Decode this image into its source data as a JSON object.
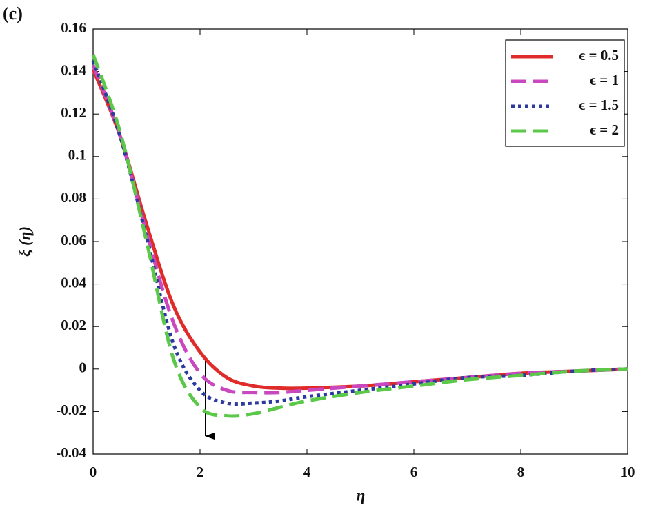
{
  "chart_data": {
    "type": "line",
    "panel_label": "(c)",
    "x_label": "η",
    "y_label": "ξ (η)",
    "x": [
      0,
      0.5,
      1,
      1.5,
      2,
      2.5,
      3,
      3.5,
      4,
      5,
      6,
      7,
      8,
      9,
      10
    ],
    "series": [
      {
        "name": "ϵ = 0.5",
        "color": "#e02b2b",
        "linestyle": "solid",
        "values": [
          0.141,
          0.11,
          0.068,
          0.03,
          0.008,
          -0.004,
          -0.008,
          -0.009,
          -0.009,
          -0.008,
          -0.006,
          -0.004,
          -0.002,
          -0.001,
          0
        ]
      },
      {
        "name": "ϵ = 1",
        "color": "#c948c0",
        "linestyle": "dashed",
        "values": [
          0.143,
          0.11,
          0.064,
          0.022,
          -0.002,
          -0.01,
          -0.011,
          -0.011,
          -0.01,
          -0.008,
          -0.006,
          -0.004,
          -0.002,
          -0.001,
          0
        ]
      },
      {
        "name": "ϵ = 1.5",
        "color": "#2b3a9c",
        "linestyle": "dotted",
        "values": [
          0.145,
          0.11,
          0.062,
          0.012,
          -0.01,
          -0.016,
          -0.016,
          -0.015,
          -0.013,
          -0.01,
          -0.007,
          -0.004,
          -0.003,
          -0.001,
          0
        ]
      },
      {
        "name": "ϵ = 2",
        "color": "#5cc84a",
        "linestyle": "dashed",
        "values": [
          0.148,
          0.112,
          0.06,
          0.005,
          -0.018,
          -0.022,
          -0.021,
          -0.018,
          -0.015,
          -0.011,
          -0.008,
          -0.005,
          -0.003,
          -0.001,
          0
        ]
      }
    ],
    "xlim": [
      0,
      10
    ],
    "xticks": [
      0,
      2,
      4,
      6,
      8,
      10
    ],
    "ylim": [
      -0.04,
      0.16
    ],
    "yticks": [
      -0.04,
      -0.02,
      0,
      0.02,
      0.04,
      0.06,
      0.08,
      0.1,
      0.12,
      0.14,
      0.16
    ],
    "legend": "upper right",
    "grid": false
  }
}
